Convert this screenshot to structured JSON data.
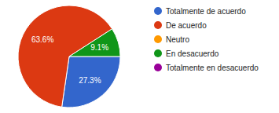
{
  "chart_data": {
    "type": "pie",
    "categories": [
      "Totalmente de acuerdo",
      "De acuerdo",
      "Neutro",
      "En desacuerdo",
      "Totalmente en desacuerdo"
    ],
    "values": [
      27.3,
      63.6,
      0,
      9.1,
      0
    ],
    "value_labels": [
      "27.3%",
      "63.6%",
      null,
      "9.1%",
      null
    ],
    "colors": [
      "#3366cc",
      "#dc3912",
      "#ff9900",
      "#109618",
      "#990099"
    ],
    "data_labels": true,
    "legend": "right"
  }
}
